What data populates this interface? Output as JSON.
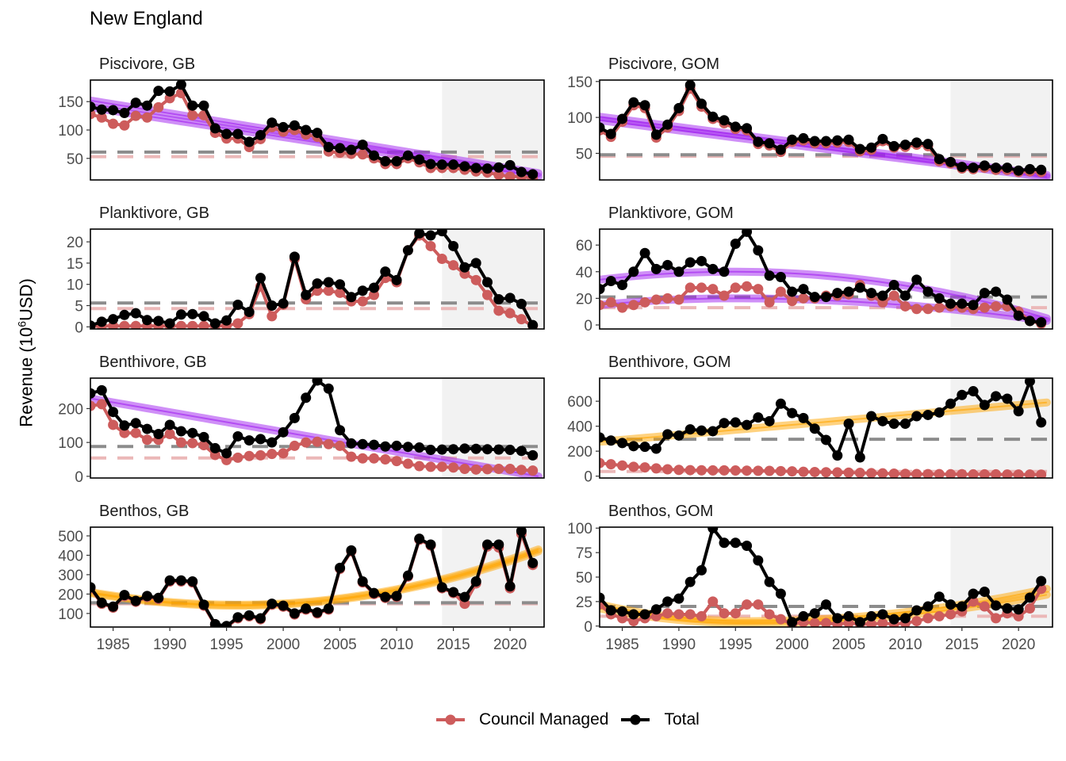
{
  "title": "New England",
  "ylabel_prefix": "Revenue (10",
  "ylabel_sup": "6",
  "ylabel_suffix": "USD)",
  "colors": {
    "council": "#CD5C5C",
    "total": "#000000",
    "trend_decline": "#A020F0",
    "trend_increase": "#FFA500",
    "shade": "#F2F2F2",
    "mean_total": "#8C8C8C",
    "mean_council": "#EBB8B8"
  },
  "legend": [
    {
      "label": "Council Managed",
      "color": "#CD5C5C"
    },
    {
      "label": "Total",
      "color": "#000000"
    }
  ],
  "chart_data": {
    "type": "line",
    "years": [
      1983,
      1984,
      1985,
      1986,
      1987,
      1988,
      1989,
      1990,
      1991,
      1992,
      1993,
      1994,
      1995,
      1996,
      1997,
      1998,
      1999,
      2000,
      2001,
      2002,
      2003,
      2004,
      2005,
      2006,
      2007,
      2008,
      2009,
      2010,
      2011,
      2012,
      2013,
      2014,
      2015,
      2016,
      2017,
      2018,
      2019,
      2020,
      2021,
      2022
    ],
    "xlim": [
      1983,
      2023
    ],
    "x_ticks": [
      1985,
      1990,
      1995,
      2000,
      2005,
      2010,
      2015,
      2020
    ],
    "shaded_years": [
      2014,
      2023
    ],
    "series_names": [
      "Council Managed",
      "Total"
    ],
    "panels": [
      {
        "title": "Piscivore, GB",
        "ylim": [
          12,
          188
        ],
        "yticks": [
          50,
          100,
          150
        ],
        "total": [
          141,
          136,
          135,
          130,
          148,
          143,
          169,
          168,
          180,
          143,
          143,
          103,
          93,
          93,
          79,
          91,
          113,
          105,
          108,
          100,
          95,
          70,
          68,
          65,
          74,
          55,
          45,
          45,
          55,
          48,
          40,
          39,
          39,
          36,
          33,
          32,
          34,
          38,
          26,
          22
        ],
        "council": [
          128,
          122,
          111,
          108,
          125,
          122,
          140,
          156,
          165,
          126,
          126,
          95,
          85,
          85,
          70,
          84,
          105,
          97,
          100,
          92,
          88,
          62,
          60,
          58,
          57,
          50,
          40,
          40,
          50,
          43,
          33,
          33,
          33,
          30,
          27,
          25,
          21,
          18,
          18,
          15
        ],
        "mean_total": 61,
        "mean_council": 53,
        "trend_total": {
          "color": "decline",
          "start": 152,
          "end": 24
        },
        "trend_council": {
          "color": "decline",
          "start": 140,
          "end": 18
        }
      },
      {
        "title": "Piscivore, GOM",
        "ylim": [
          13,
          152
        ],
        "yticks": [
          50,
          100,
          150
        ],
        "total": [
          86,
          77,
          98,
          121,
          117,
          76,
          90,
          113,
          145,
          119,
          101,
          96,
          87,
          85,
          66,
          64,
          55,
          69,
          71,
          67,
          67,
          68,
          69,
          56,
          58,
          70,
          60,
          62,
          65,
          63,
          42,
          38,
          31,
          30,
          33,
          30,
          30,
          26,
          28,
          27
        ],
        "council": [
          82,
          73,
          94,
          117,
          113,
          72,
          86,
          109,
          140,
          115,
          98,
          92,
          84,
          82,
          63,
          61,
          52,
          66,
          68,
          64,
          64,
          65,
          66,
          53,
          55,
          67,
          58,
          59,
          62,
          60,
          39,
          36,
          29,
          28,
          30,
          27,
          27,
          24,
          25,
          24
        ],
        "mean_total": 48,
        "mean_council": 46,
        "trend_total": {
          "color": "decline",
          "start": 101,
          "end": 20
        },
        "trend_council": {
          "color": "decline",
          "start": 96,
          "end": 17
        }
      },
      {
        "title": "Planktivore, GB",
        "ylim": [
          -0.5,
          23
        ],
        "yticks": [
          0,
          5,
          10,
          15,
          20
        ],
        "total": [
          0.3,
          1.2,
          1.8,
          2.8,
          3.2,
          1.6,
          1.4,
          0.8,
          2.9,
          3.0,
          2.5,
          0.8,
          1.5,
          5.2,
          3.5,
          11.5,
          5.0,
          5.5,
          16.5,
          7.5,
          10.2,
          10.5,
          10.0,
          7.0,
          8.5,
          9.2,
          13.0,
          11.0,
          18.0,
          22.0,
          21.5,
          22.5,
          19.0,
          14.0,
          15.0,
          10.5,
          6.5,
          6.8,
          5.4,
          0.4
        ],
        "council": [
          0.1,
          0.2,
          0.2,
          0.2,
          0.2,
          0.2,
          0.2,
          0.2,
          0.2,
          0.2,
          0.2,
          0.2,
          0.3,
          0.8,
          3.0,
          9.5,
          2.5,
          5.2,
          16.0,
          6.5,
          8.5,
          8.5,
          8.0,
          6.0,
          6.0,
          7.5,
          11.5,
          10.5,
          18.0,
          21.5,
          19.0,
          16.0,
          14.5,
          12.5,
          11.0,
          7.5,
          3.8,
          3.2,
          1.8,
          0.2
        ],
        "mean_total": 5.6,
        "mean_council": 4.3,
        "trend_total": null,
        "trend_council": null
      },
      {
        "title": "Planktivore, GOM",
        "ylim": [
          -3,
          72
        ],
        "yticks": [
          0,
          20,
          40,
          60
        ],
        "total": [
          27,
          33,
          30,
          40,
          54,
          42,
          45,
          40,
          47,
          48,
          42,
          40,
          61,
          70,
          56,
          37,
          36,
          25,
          27,
          21,
          21,
          24,
          25,
          28,
          24,
          22,
          30,
          22,
          34,
          25,
          20,
          16,
          16,
          15,
          24,
          25,
          19,
          7,
          3,
          2
        ],
        "council": [
          15,
          17,
          13,
          15,
          17,
          19,
          20,
          19,
          28,
          28,
          27,
          22,
          28,
          29,
          27,
          17,
          25,
          18,
          20,
          20,
          22,
          22,
          23,
          30,
          22,
          17,
          22,
          14,
          12,
          12,
          13,
          14,
          13,
          12,
          13,
          14,
          14,
          10,
          3,
          1
        ],
        "mean_total": 21,
        "mean_council": 13,
        "trend_total": {
          "color": "decline",
          "start": 34,
          "peak": 40,
          "end": 5
        },
        "trend_council": {
          "color": "decline",
          "start": 15,
          "peak": 20,
          "end": 3
        }
      },
      {
        "title": "Benthivore, GB",
        "ylim": [
          -5,
          290
        ],
        "yticks": [
          0,
          100,
          200
        ],
        "total": [
          245,
          254,
          190,
          150,
          157,
          140,
          125,
          152,
          133,
          128,
          116,
          83,
          68,
          118,
          106,
          110,
          100,
          130,
          172,
          232,
          283,
          259,
          136,
          97,
          95,
          93,
          88,
          90,
          87,
          85,
          78,
          79,
          80,
          82,
          81,
          80,
          79,
          78,
          75,
          62
        ],
        "council": [
          208,
          213,
          152,
          128,
          128,
          108,
          108,
          125,
          100,
          98,
          92,
          63,
          48,
          55,
          60,
          62,
          66,
          68,
          90,
          100,
          102,
          95,
          90,
          58,
          53,
          53,
          50,
          45,
          37,
          30,
          28,
          28,
          26,
          22,
          20,
          21,
          22,
          22,
          19,
          17
        ],
        "mean_total": 88,
        "mean_council": 54,
        "trend_total": {
          "color": "decline",
          "start": 230,
          "end": 0
        },
        "trend_council": null
      },
      {
        "title": "Benthivore, GOM",
        "ylim": [
          -15,
          785
        ],
        "yticks": [
          0,
          200,
          400,
          600
        ],
        "total": [
          310,
          285,
          265,
          240,
          235,
          220,
          335,
          325,
          375,
          365,
          360,
          425,
          430,
          410,
          470,
          440,
          580,
          505,
          465,
          380,
          290,
          165,
          420,
          150,
          480,
          440,
          420,
          420,
          480,
          490,
          510,
          580,
          650,
          680,
          570,
          640,
          620,
          520,
          760,
          430
        ],
        "council": [
          105,
          95,
          85,
          75,
          70,
          62,
          55,
          50,
          48,
          47,
          46,
          46,
          45,
          44,
          43,
          42,
          40,
          38,
          35,
          33,
          31,
          30,
          28,
          26,
          24,
          22,
          20,
          18,
          17,
          16,
          16,
          15,
          15,
          14,
          14,
          14,
          13,
          13,
          13,
          12
        ],
        "mean_total": 295,
        "mean_council": 37,
        "trend_total": {
          "color": "increase",
          "start": 275,
          "end": 590
        },
        "trend_council": null
      },
      {
        "title": "Benthos, GB",
        "ylim": [
          30,
          545
        ],
        "yticks": [
          100,
          200,
          300,
          400,
          500
        ],
        "total": [
          235,
          155,
          135,
          195,
          165,
          190,
          180,
          270,
          270,
          265,
          145,
          45,
          35,
          80,
          90,
          75,
          150,
          140,
          100,
          125,
          105,
          125,
          335,
          425,
          265,
          205,
          185,
          190,
          295,
          485,
          455,
          235,
          210,
          185,
          265,
          455,
          455,
          240,
          525,
          360
        ],
        "council": [
          230,
          150,
          130,
          190,
          160,
          185,
          175,
          265,
          265,
          260,
          140,
          40,
          30,
          75,
          85,
          70,
          145,
          135,
          95,
          120,
          100,
          120,
          330,
          420,
          260,
          200,
          180,
          185,
          290,
          480,
          450,
          230,
          205,
          150,
          255,
          445,
          440,
          230,
          510,
          350
        ],
        "mean_total": 155,
        "mean_council": 150,
        "trend_total": {
          "color": "increase",
          "start": 210,
          "min": 145,
          "end": 430
        },
        "trend_council": {
          "color": "increase",
          "start": 205,
          "min": 140,
          "end": 420
        }
      },
      {
        "title": "Benthos, GOM",
        "ylim": [
          -1,
          101
        ],
        "yticks": [
          0,
          25,
          50,
          75,
          100
        ],
        "total": [
          29,
          16,
          15,
          12,
          12,
          17,
          25,
          28,
          45,
          57,
          100,
          85,
          85,
          82,
          67,
          45,
          33,
          4,
          10,
          13,
          22,
          8,
          10,
          4,
          10,
          12,
          7,
          8,
          16,
          20,
          30,
          22,
          20,
          33,
          35,
          21,
          18,
          17,
          29,
          46
        ],
        "council": [
          22,
          12,
          8,
          5,
          8,
          10,
          13,
          12,
          12,
          10,
          25,
          13,
          13,
          22,
          22,
          12,
          7,
          2,
          4,
          3,
          3,
          2,
          3,
          2,
          2,
          3,
          2,
          3,
          5,
          8,
          10,
          12,
          15,
          25,
          20,
          8,
          13,
          10,
          18,
          38
        ],
        "mean_total": 20,
        "mean_council": 10,
        "trend_total": {
          "color": "increase",
          "start": 22,
          "min": 5,
          "end": 38
        },
        "trend_council": {
          "color": "increase",
          "start": 18,
          "min": 3,
          "end": 32
        }
      }
    ]
  }
}
